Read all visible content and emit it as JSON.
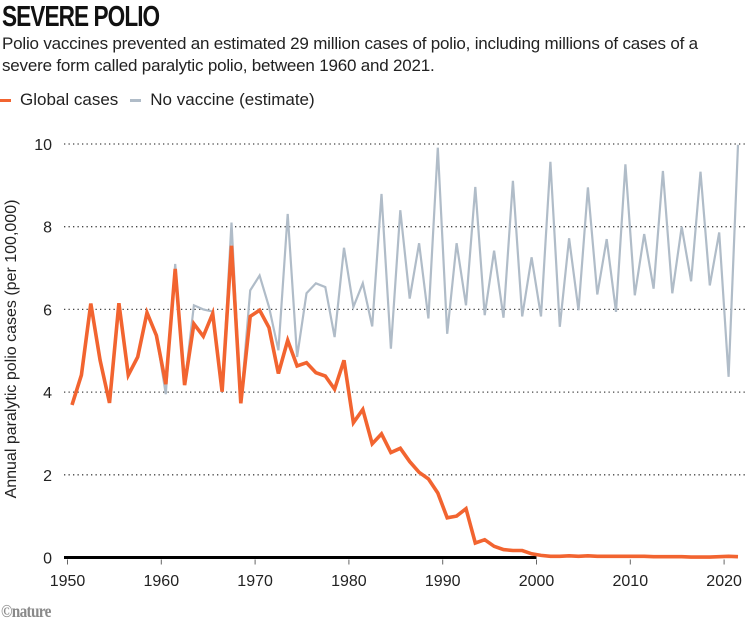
{
  "header": {
    "title": "SEVERE POLIO",
    "subtitle": "Polio vaccines prevented an estimated 29 million cases of polio, including millions of cases of a severe form called paralytic polio, between 1960 and 2021."
  },
  "legend": [
    {
      "label": "Global cases",
      "color": "#f26430"
    },
    {
      "label": "No vaccine (estimate)",
      "color": "#b0bcc8"
    }
  ],
  "footer": {
    "logo": "©nature"
  },
  "chart_data": {
    "type": "line",
    "title": "SEVERE POLIO",
    "xlabel": "",
    "ylabel": "Annual paralytic polio cases (per 100,000)",
    "xlim": [
      1950,
      2022
    ],
    "ylim": [
      0,
      10
    ],
    "x_ticks": [
      1950,
      1960,
      1970,
      1980,
      1990,
      2000,
      2010,
      2020
    ],
    "y_ticks": [
      0,
      2,
      4,
      6,
      8,
      10
    ],
    "grid": "horizontal-dotted",
    "legend_position": "top-left",
    "x": [
      1950,
      1951,
      1952,
      1953,
      1954,
      1955,
      1956,
      1957,
      1958,
      1959,
      1960,
      1961,
      1962,
      1963,
      1964,
      1965,
      1966,
      1967,
      1968,
      1969,
      1970,
      1971,
      1972,
      1973,
      1974,
      1975,
      1976,
      1977,
      1978,
      1979,
      1980,
      1981,
      1982,
      1983,
      1984,
      1985,
      1986,
      1987,
      1988,
      1989,
      1990,
      1991,
      1992,
      1993,
      1994,
      1995,
      1996,
      1997,
      1998,
      1999,
      2000,
      2001,
      2002,
      2003,
      2004,
      2005,
      2006,
      2007,
      2008,
      2009,
      2010,
      2011,
      2012,
      2013,
      2014,
      2015,
      2016,
      2017,
      2018,
      2019,
      2020,
      2021
    ],
    "series": [
      {
        "name": "No vaccine (estimate)",
        "color": "#b0bcc8",
        "values": [
          3.69,
          4.41,
          6.14,
          4.77,
          3.74,
          6.15,
          4.41,
          4.85,
          5.92,
          5.37,
          3.95,
          7.1,
          4.17,
          6.1,
          6.0,
          5.95,
          4.01,
          8.1,
          3.73,
          6.46,
          6.82,
          6.06,
          5.01,
          8.31,
          4.85,
          6.39,
          6.63,
          6.54,
          5.33,
          7.49,
          6.06,
          6.63,
          5.59,
          8.79,
          5.05,
          8.4,
          6.26,
          7.6,
          5.78,
          9.91,
          5.41,
          7.6,
          6.1,
          8.96,
          5.86,
          7.42,
          5.8,
          9.11,
          5.83,
          7.26,
          5.83,
          9.57,
          5.58,
          7.72,
          5.98,
          8.95,
          6.36,
          7.7,
          5.94,
          9.51,
          6.34,
          7.82,
          6.5,
          9.35,
          6.39,
          8.0,
          6.68,
          9.33,
          6.58,
          7.86,
          4.37,
          9.98
        ]
      },
      {
        "name": "Global cases",
        "color": "#f26430",
        "values": [
          3.69,
          4.41,
          6.14,
          4.77,
          3.74,
          6.15,
          4.41,
          4.85,
          5.92,
          5.37,
          4.19,
          6.98,
          4.17,
          5.65,
          5.35,
          5.9,
          4.01,
          7.54,
          3.73,
          5.83,
          5.98,
          5.56,
          4.45,
          5.25,
          4.63,
          4.71,
          4.47,
          4.39,
          4.07,
          4.77,
          3.26,
          3.58,
          2.75,
          2.99,
          2.54,
          2.64,
          2.32,
          2.06,
          1.9,
          1.56,
          0.96,
          1.0,
          1.18,
          0.35,
          0.43,
          0.27,
          0.19,
          0.17,
          0.17,
          0.09,
          0.05,
          0.03,
          0.03,
          0.04,
          0.03,
          0.04,
          0.03,
          0.03,
          0.03,
          0.03,
          0.03,
          0.03,
          0.02,
          0.02,
          0.02,
          0.02,
          0.01,
          0.01,
          0.01,
          0.02,
          0.03,
          0.02
        ]
      }
    ]
  }
}
